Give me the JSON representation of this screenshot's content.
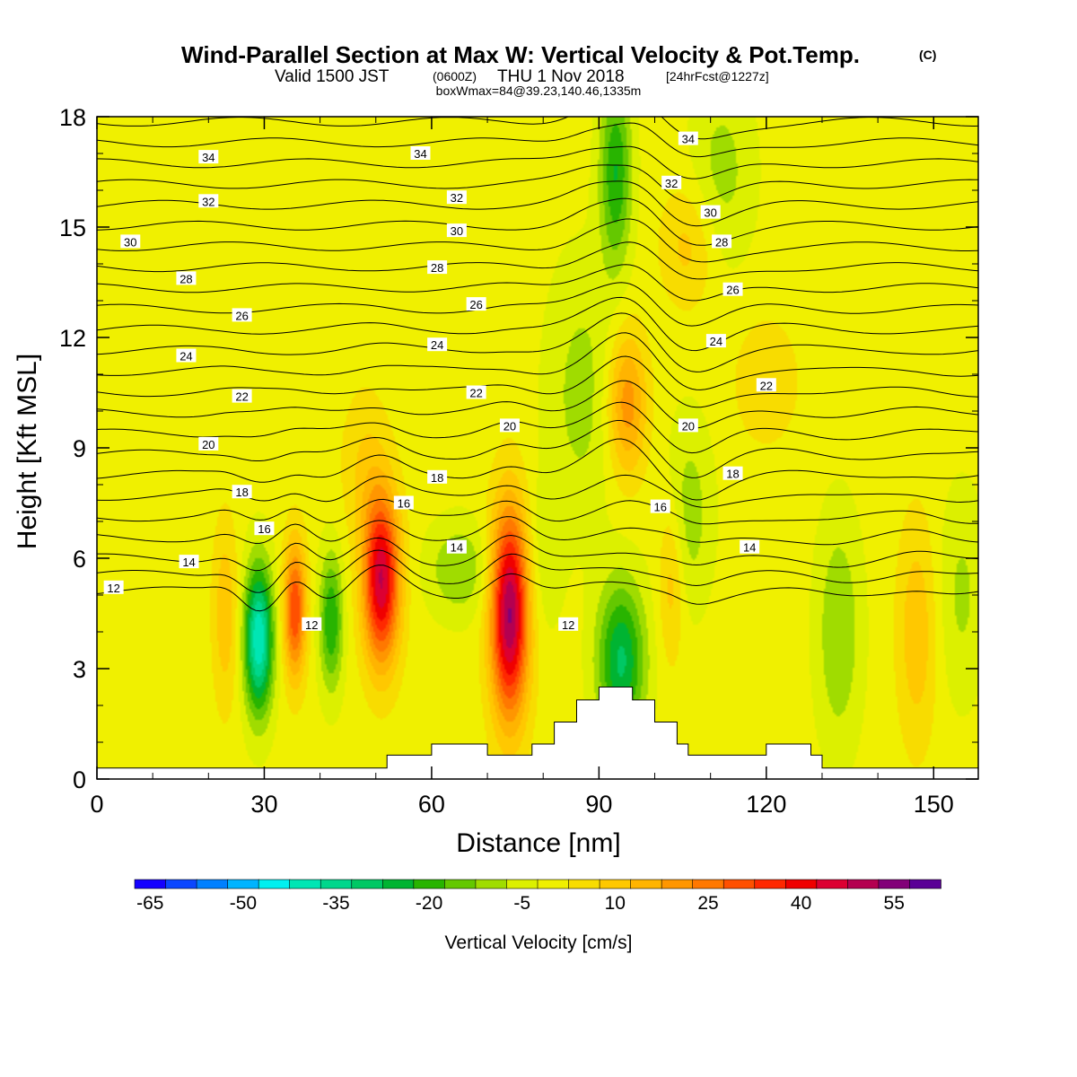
{
  "chart_data": {
    "type": "heatmap",
    "title": "Wind-Parallel Section at Max W: Vertical Velocity & Pot.Temp.",
    "copyright_mark": "(C)",
    "subtitle_valid": "Valid 1500 JST",
    "subtitle_utc": "(0600Z)",
    "subtitle_date": "THU 1 Nov 2018",
    "subtitle_fcst": "[24hrFcst@1227z]",
    "subtitle2": "boxWmax=84@39.23,140.46,1335m",
    "xlabel": "Distance [nm]",
    "ylabel": "Height [Kft MSL]",
    "xlim": [
      0,
      158
    ],
    "ylim": [
      0,
      18
    ],
    "x_ticks": [
      0,
      30,
      60,
      90,
      120,
      150
    ],
    "y_ticks": [
      0,
      3,
      6,
      9,
      12,
      15,
      18
    ],
    "colorbar": {
      "label": "Vertical Velocity [cm/s]",
      "levels": [
        -65,
        -60,
        -55,
        -50,
        -45,
        -40,
        -35,
        -30,
        -25,
        -20,
        -15,
        -10,
        -5,
        0,
        5,
        10,
        15,
        20,
        25,
        30,
        35,
        40,
        45,
        50,
        55,
        60
      ],
      "colors": [
        "#1400ff",
        "#0a46ff",
        "#0080ff",
        "#00b4ff",
        "#00f0f0",
        "#00e6b4",
        "#00d78c",
        "#00c864",
        "#00b432",
        "#28b400",
        "#64c800",
        "#a0dc00",
        "#dcf000",
        "#f0f000",
        "#f8dc00",
        "#ffc800",
        "#ffb400",
        "#ff9600",
        "#ff7800",
        "#ff5000",
        "#ff2800",
        "#f00000",
        "#dc0032",
        "#b40050",
        "#820078",
        "#5a0096"
      ],
      "tick_labels": [
        "-65",
        "-50",
        "-35",
        "-20",
        "-5",
        "10",
        "25",
        "40",
        "55"
      ]
    },
    "terrain": {
      "x": [
        0,
        2,
        4,
        6,
        8,
        10,
        12,
        14,
        16,
        18,
        20,
        22,
        24,
        26,
        28,
        30,
        32,
        34,
        36,
        38,
        40,
        42,
        44,
        46,
        48,
        50,
        52,
        54,
        56,
        58,
        60,
        62,
        64,
        66,
        68,
        70,
        72,
        74,
        76,
        78,
        80,
        82,
        84,
        86,
        88,
        90,
        92,
        94,
        96,
        98,
        100,
        102,
        104,
        106,
        108,
        110,
        112,
        114,
        116,
        118,
        120,
        122,
        124,
        126,
        128,
        130,
        132,
        134,
        136,
        138,
        140,
        142,
        144,
        146,
        148,
        150,
        152,
        154,
        156,
        158
      ],
      "elev_kft": [
        0.3,
        0.3,
        0.3,
        0.3,
        0.3,
        0.3,
        0.3,
        0.3,
        0.3,
        0.3,
        0.3,
        0.3,
        0.3,
        0.3,
        0.3,
        0.3,
        0.3,
        0.3,
        0.3,
        0.3,
        0.3,
        0.3,
        0.3,
        0.3,
        0.3,
        0.3,
        0.65,
        0.65,
        0.65,
        0.65,
        0.95,
        0.95,
        0.95,
        0.95,
        0.95,
        0.65,
        0.65,
        0.65,
        0.65,
        0.95,
        0.95,
        1.55,
        1.55,
        2.15,
        2.15,
        2.5,
        2.5,
        2.5,
        2.15,
        2.15,
        1.55,
        1.55,
        0.95,
        0.65,
        0.65,
        0.65,
        0.65,
        0.65,
        0.65,
        0.65,
        0.95,
        0.95,
        0.95,
        0.95,
        0.65,
        0.3,
        0.3,
        0.3,
        0.3,
        0.3,
        0.3,
        0.3,
        0.3,
        0.3,
        0.3,
        0.3,
        0.3,
        0.3,
        0.3,
        0.3
      ]
    },
    "vertical_velocity_features": [
      {
        "x": 29,
        "z": 3.8,
        "sx": 1.8,
        "sz": 1.4,
        "w": -42
      },
      {
        "x": 35.5,
        "z": 4.6,
        "sx": 1.4,
        "sz": 1.3,
        "w": 33
      },
      {
        "x": 42,
        "z": 4.3,
        "sx": 1.5,
        "sz": 1.3,
        "w": -22
      },
      {
        "x": 51,
        "z": 5.4,
        "sx": 2.3,
        "sz": 1.6,
        "w": 48
      },
      {
        "x": 74,
        "z": 4.5,
        "sx": 2.4,
        "sz": 2.0,
        "w": 54
      },
      {
        "x": 94,
        "z": 3.2,
        "sx": 3.0,
        "sz": 1.5,
        "w": -28
      },
      {
        "x": 95,
        "z": 10.2,
        "sx": 2.5,
        "sz": 1.4,
        "w": 22
      },
      {
        "x": 93,
        "z": 16.5,
        "sx": 2.0,
        "sz": 1.8,
        "w": -22
      },
      {
        "x": 65,
        "z": 5.7,
        "sx": 4.0,
        "sz": 0.9,
        "w": -12
      },
      {
        "x": 87,
        "z": 10.5,
        "sx": 4.5,
        "sz": 2.5,
        "w": -9
      },
      {
        "x": 106,
        "z": 14.5,
        "sx": 3.5,
        "sz": 1.2,
        "w": 10
      },
      {
        "x": 106,
        "z": 7.2,
        "sx": 3.0,
        "sz": 1.8,
        "w": -10
      },
      {
        "x": 112,
        "z": 16.5,
        "sx": 4.0,
        "sz": 1.8,
        "w": -9
      },
      {
        "x": 133,
        "z": 4.0,
        "sx": 2.8,
        "sz": 2.2,
        "w": -12
      },
      {
        "x": 147,
        "z": 4.0,
        "sx": 2.5,
        "sz": 2.2,
        "w": 12
      },
      {
        "x": 155,
        "z": 5.0,
        "sx": 3.0,
        "sz": 2.0,
        "w": -8
      },
      {
        "x": 23,
        "z": 4.5,
        "sx": 1.6,
        "sz": 1.8,
        "w": 12
      },
      {
        "x": 80,
        "z": 6.0,
        "sx": 2.5,
        "sz": 1.5,
        "w": -6
      },
      {
        "x": 48,
        "z": 8.5,
        "sx": 3.0,
        "sz": 1.5,
        "w": 8
      },
      {
        "x": 103,
        "z": 5.5,
        "sx": 1.6,
        "sz": 1.6,
        "w": 12
      },
      {
        "x": 120,
        "z": 10.8,
        "sx": 4.0,
        "sz": 1.2,
        "w": 8
      }
    ],
    "potential_temperature": {
      "contour_levels": [
        12,
        13,
        14,
        15,
        16,
        17,
        18,
        19,
        20,
        21,
        22,
        23,
        24,
        25,
        26,
        27,
        28,
        29,
        30,
        31,
        32,
        33,
        34,
        35
      ],
      "labels": [
        {
          "text": "12",
          "x": 3,
          "z": 5.2
        },
        {
          "text": "14",
          "x": 16.5,
          "z": 5.9
        },
        {
          "text": "16",
          "x": 30,
          "z": 6.8
        },
        {
          "text": "18",
          "x": 26,
          "z": 7.8
        },
        {
          "text": "20",
          "x": 20,
          "z": 9.1
        },
        {
          "text": "22",
          "x": 26,
          "z": 10.4
        },
        {
          "text": "24",
          "x": 16,
          "z": 11.5
        },
        {
          "text": "26",
          "x": 26,
          "z": 12.6
        },
        {
          "text": "28",
          "x": 16,
          "z": 13.6
        },
        {
          "text": "30",
          "x": 6,
          "z": 14.6
        },
        {
          "text": "32",
          "x": 20,
          "z": 15.7
        },
        {
          "text": "34",
          "x": 20,
          "z": 16.9
        },
        {
          "text": "34",
          "x": 58,
          "z": 17.0
        },
        {
          "text": "32",
          "x": 64.5,
          "z": 15.8
        },
        {
          "text": "30",
          "x": 64.5,
          "z": 14.9
        },
        {
          "text": "28",
          "x": 61,
          "z": 13.9
        },
        {
          "text": "26",
          "x": 68,
          "z": 12.9
        },
        {
          "text": "24",
          "x": 61,
          "z": 11.8
        },
        {
          "text": "22",
          "x": 68,
          "z": 10.5
        },
        {
          "text": "20",
          "x": 74,
          "z": 9.6
        },
        {
          "text": "18",
          "x": 61,
          "z": 8.2
        },
        {
          "text": "16",
          "x": 55,
          "z": 7.5
        },
        {
          "text": "14",
          "x": 64.5,
          "z": 6.3
        },
        {
          "text": "12",
          "x": 38.5,
          "z": 4.2
        },
        {
          "text": "12",
          "x": 84.5,
          "z": 4.2
        },
        {
          "text": "16",
          "x": 101,
          "z": 7.4
        },
        {
          "text": "18",
          "x": 114,
          "z": 8.3
        },
        {
          "text": "20",
          "x": 106,
          "z": 9.6
        },
        {
          "text": "22",
          "x": 120,
          "z": 10.7
        },
        {
          "text": "24",
          "x": 111,
          "z": 11.9
        },
        {
          "text": "26",
          "x": 114,
          "z": 13.3
        },
        {
          "text": "28",
          "x": 112,
          "z": 14.6
        },
        {
          "text": "30",
          "x": 110,
          "z": 15.4
        },
        {
          "text": "32",
          "x": 103,
          "z": 16.2
        },
        {
          "text": "34",
          "x": 106,
          "z": 17.4
        },
        {
          "text": "14",
          "x": 117,
          "z": 6.3
        }
      ]
    }
  }
}
